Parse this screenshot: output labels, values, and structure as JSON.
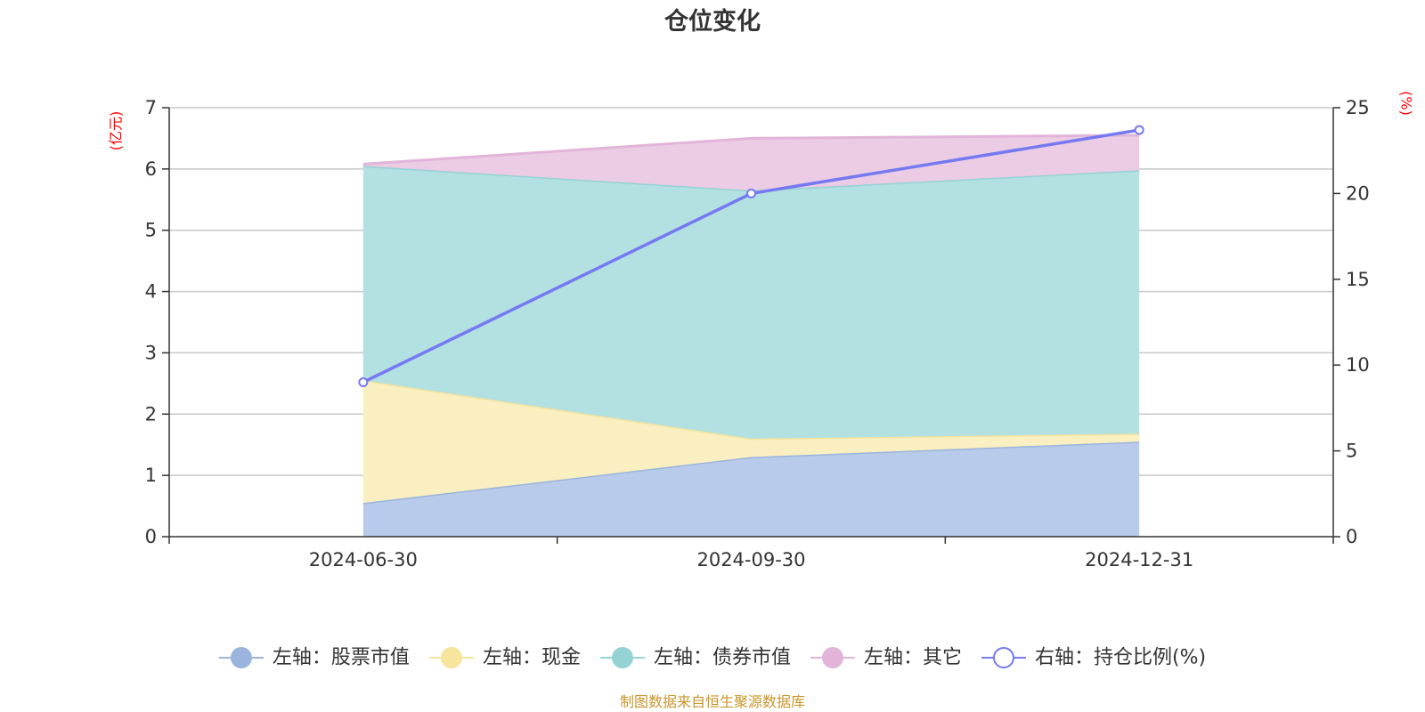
{
  "chart_data": {
    "type": "area",
    "title": "仓位变化",
    "categories": [
      "2024-06-30",
      "2024-09-30",
      "2024-12-31"
    ],
    "y_left": {
      "unit": "(亿元)",
      "ylim": [
        0,
        7
      ],
      "ticks": [
        0,
        1,
        2,
        3,
        4,
        5,
        6,
        7
      ]
    },
    "y_right": {
      "unit": "(%)",
      "ylim": [
        0,
        25
      ],
      "ticks": [
        0,
        5,
        10,
        15,
        20,
        25
      ]
    },
    "series": [
      {
        "name": "左轴：股票市值",
        "axis": "left",
        "kind": "stacked-area",
        "color": "#9ab4de",
        "fill": "#b8cbea",
        "values": [
          0.55,
          1.3,
          1.55
        ]
      },
      {
        "name": "左轴：现金",
        "axis": "left",
        "kind": "stacked-area",
        "color": "#f7e49d",
        "fill": "#f9efc0",
        "values": [
          2.0,
          0.3,
          0.13
        ]
      },
      {
        "name": "左轴：债券市值",
        "axis": "left",
        "kind": "stacked-area",
        "color": "#95d2d4",
        "fill": "#b3e0e1",
        "values": [
          3.5,
          4.05,
          4.3
        ]
      },
      {
        "name": "左轴：其它",
        "axis": "left",
        "kind": "stacked-area",
        "color": "#e2b4d9",
        "fill": "#ecccE4",
        "values": [
          0.03,
          0.85,
          0.57
        ]
      },
      {
        "name": "右轴：持仓比例(%)",
        "axis": "right",
        "kind": "line",
        "color": "#7579f2",
        "values": [
          9.0,
          20.0,
          23.7
        ]
      }
    ],
    "grid": true,
    "legend_position": "bottom"
  },
  "footer": {
    "source": "制图数据来自恒生聚源数据库"
  }
}
